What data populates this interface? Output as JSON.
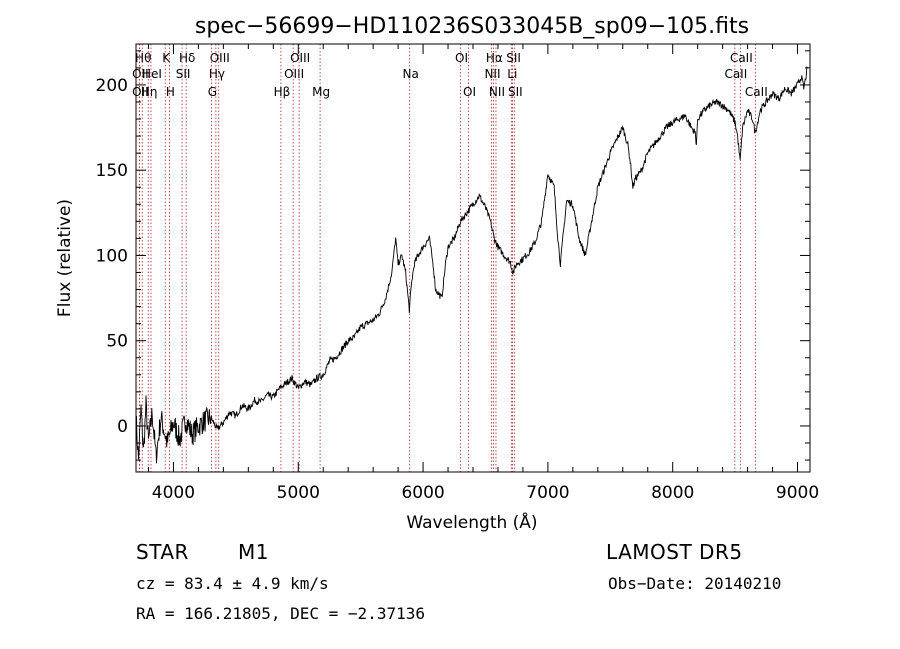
{
  "chart_data": {
    "type": "line",
    "title": "spec−56699−HD110236S033045B_sp09−105.fits",
    "xlabel": "Wavelength (Å)",
    "ylabel": "Flux (relative)",
    "xlim": [
      3700,
      9100
    ],
    "ylim": [
      -27,
      224
    ],
    "xticks": [
      4000,
      5000,
      6000,
      7000,
      8000,
      9000
    ],
    "yticks": [
      0,
      50,
      100,
      150,
      200
    ],
    "grid": false,
    "series": [
      {
        "x": [
          3700,
          3720,
          3740,
          3760,
          3780,
          3800,
          3830,
          3860,
          3900,
          3950,
          4000,
          4050,
          4100,
          4150,
          4200,
          4250,
          4300,
          4350,
          4400,
          4450,
          4500,
          4550,
          4600,
          4650,
          4700,
          4750,
          4800,
          4850,
          4900,
          4950,
          5000,
          5050,
          5100,
          5150,
          5200,
          5250,
          5300,
          5350,
          5400,
          5450,
          5500,
          5550,
          5600,
          5650,
          5700,
          5750,
          5780,
          5800,
          5830,
          5860,
          5890,
          5910,
          5930,
          5960,
          6000,
          6050,
          6080,
          6100,
          6150,
          6180,
          6200,
          6250,
          6300,
          6350,
          6400,
          6450,
          6500,
          6540,
          6570,
          6600,
          6650,
          6700,
          6720,
          6750,
          6800,
          6850,
          6900,
          6950,
          7000,
          7050,
          7080,
          7100,
          7120,
          7150,
          7200,
          7250,
          7300,
          7350,
          7400,
          7450,
          7500,
          7550,
          7600,
          7620,
          7640,
          7660,
          7680,
          7700,
          7750,
          7800,
          7850,
          7900,
          7950,
          8000,
          8050,
          8100,
          8150,
          8180,
          8190,
          8200,
          8250,
          8300,
          8350,
          8400,
          8450,
          8500,
          8520,
          8540,
          8560,
          8600,
          8640,
          8660,
          8680,
          8700,
          8750,
          8800,
          8850,
          8900,
          8950,
          9000,
          9030,
          9050,
          9080
        ],
        "y": [
          5,
          -20,
          10,
          -15,
          12,
          -10,
          8,
          -18,
          5,
          -10,
          2,
          -8,
          4,
          -5,
          0,
          3,
          5,
          -2,
          2,
          8,
          6,
          12,
          10,
          15,
          14,
          18,
          17,
          22,
          25,
          28,
          22,
          26,
          24,
          28,
          30,
          38,
          40,
          45,
          50,
          52,
          58,
          60,
          62,
          66,
          75,
          90,
          110,
          95,
          100,
          90,
          68,
          85,
          95,
          100,
          105,
          110,
          95,
          80,
          75,
          95,
          105,
          110,
          120,
          125,
          130,
          135,
          128,
          120,
          110,
          105,
          100,
          96,
          90,
          95,
          98,
          102,
          108,
          120,
          148,
          140,
          110,
          95,
          110,
          132,
          130,
          110,
          100,
          120,
          140,
          150,
          160,
          168,
          175,
          170,
          165,
          155,
          140,
          145,
          150,
          160,
          165,
          170,
          175,
          178,
          180,
          182,
          175,
          172,
          165,
          180,
          185,
          188,
          190,
          188,
          185,
          178,
          170,
          155,
          175,
          185,
          180,
          172,
          178,
          185,
          190,
          195,
          192,
          198,
          195,
          200,
          205,
          198,
          210
        ]
      }
    ],
    "line_marks": [
      {
        "x": 3750,
        "label": "Hθ",
        "row": 0
      },
      {
        "x": 3727,
        "label": "OII",
        "row": 1
      },
      {
        "x": 3727,
        "label": "OII",
        "row": 2
      },
      {
        "x": 3798,
        "label": "Hη",
        "row": 2
      },
      {
        "x": 3820,
        "label": "HeI",
        "row": 1
      },
      {
        "x": 3934,
        "label": "K",
        "row": 0
      },
      {
        "x": 3968,
        "label": "H",
        "row": 2
      },
      {
        "x": 4102,
        "label": "Hδ",
        "row": 0
      },
      {
        "x": 4069,
        "label": "SII",
        "row": 1
      },
      {
        "x": 4340,
        "label": "Hγ",
        "row": 1
      },
      {
        "x": 4363,
        "label": "OIII",
        "row": 0
      },
      {
        "x": 4304,
        "label": "G",
        "row": 2
      },
      {
        "x": 4861,
        "label": "Hβ",
        "row": 2
      },
      {
        "x": 4959,
        "label": "OIII",
        "row": 1
      },
      {
        "x": 5007,
        "label": "OIII",
        "row": 0
      },
      {
        "x": 5175,
        "label": "Mg",
        "row": 2
      },
      {
        "x": 5893,
        "label": "Na",
        "row": 1
      },
      {
        "x": 6300,
        "label": "OI",
        "row": 0
      },
      {
        "x": 6364,
        "label": "OI",
        "row": 2
      },
      {
        "x": 6548,
        "label": "NII",
        "row": 1
      },
      {
        "x": 6563,
        "label": "Hα",
        "row": 0
      },
      {
        "x": 6584,
        "label": "NII",
        "row": 2
      },
      {
        "x": 6707,
        "label": "Li",
        "row": 1
      },
      {
        "x": 6717,
        "label": "SII",
        "row": 0
      },
      {
        "x": 6731,
        "label": "SII",
        "row": 2
      },
      {
        "x": 8498,
        "label": "CaII",
        "row": 1
      },
      {
        "x": 8542,
        "label": "CaII",
        "row": 0
      },
      {
        "x": 8662,
        "label": "CaII",
        "row": 2
      }
    ]
  },
  "info": {
    "object_class": "STAR",
    "subclass": "M1",
    "survey": "LAMOST DR5",
    "cz": "cz = 83.4 ± 4.9 km/s",
    "obs_date": "Obs−Date: 20140210",
    "coords": "RA = 166.21805, DEC =  −2.37136"
  },
  "colors": {
    "spectrum": "#000000",
    "line_marks": "#b22222",
    "axes": "#000000"
  }
}
